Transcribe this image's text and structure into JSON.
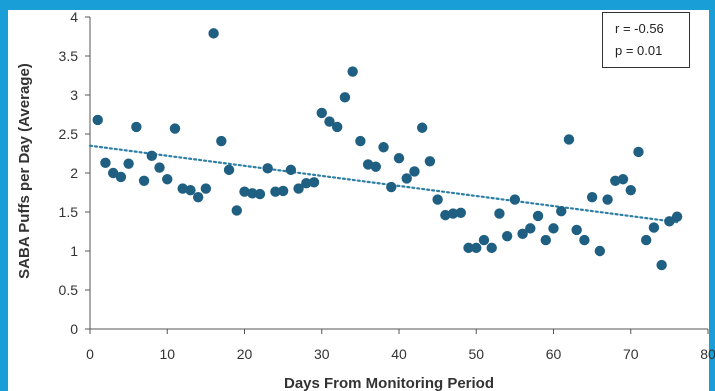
{
  "chart_data": {
    "type": "scatter",
    "title": "",
    "xlabel": "Days From Monitoring Period",
    "ylabel": "SABA Puffs per Day (Average)",
    "xlim": [
      0,
      80
    ],
    "ylim": [
      0,
      4
    ],
    "x_ticks": [
      0,
      10,
      20,
      30,
      40,
      50,
      60,
      70,
      80
    ],
    "y_ticks": [
      0,
      0.5,
      1,
      1.5,
      2,
      2.5,
      3,
      3.5,
      4
    ],
    "x_tick_labels": [
      "0",
      "10",
      "20",
      "30",
      "40",
      "50",
      "60",
      "70",
      "80"
    ],
    "y_tick_labels": [
      "0",
      "0.5",
      "1",
      "1.5",
      "2",
      "2.5",
      "3",
      "3.5",
      "4"
    ],
    "grid": false,
    "point_color": "#1f5f82",
    "trendline": {
      "style": "dotted",
      "color": "#2e7fa6",
      "x": [
        0,
        76
      ],
      "y": [
        2.35,
        1.37
      ]
    },
    "annotations": {
      "r": "r = -0.56",
      "p": "p = 0.01"
    },
    "points": [
      [
        1,
        2.68
      ],
      [
        2,
        2.13
      ],
      [
        3,
        2.0
      ],
      [
        4,
        1.95
      ],
      [
        5,
        2.12
      ],
      [
        6,
        2.59
      ],
      [
        7,
        1.9
      ],
      [
        8,
        2.22
      ],
      [
        9,
        2.07
      ],
      [
        10,
        1.92
      ],
      [
        11,
        2.57
      ],
      [
        12,
        1.8
      ],
      [
        13,
        1.78
      ],
      [
        14,
        1.69
      ],
      [
        15,
        1.8
      ],
      [
        16,
        3.79
      ],
      [
        17,
        2.41
      ],
      [
        18,
        2.04
      ],
      [
        19,
        1.52
      ],
      [
        20,
        1.76
      ],
      [
        21,
        1.74
      ],
      [
        22,
        1.73
      ],
      [
        23,
        2.06
      ],
      [
        24,
        1.76
      ],
      [
        25,
        1.77
      ],
      [
        26,
        2.04
      ],
      [
        27,
        1.8
      ],
      [
        28,
        1.87
      ],
      [
        29,
        1.88
      ],
      [
        30,
        2.77
      ],
      [
        31,
        2.66
      ],
      [
        32,
        2.59
      ],
      [
        33,
        2.97
      ],
      [
        34,
        3.3
      ],
      [
        35,
        2.41
      ],
      [
        36,
        2.11
      ],
      [
        37,
        2.08
      ],
      [
        38,
        2.33
      ],
      [
        39,
        1.82
      ],
      [
        40,
        2.19
      ],
      [
        41,
        1.93
      ],
      [
        42,
        2.02
      ],
      [
        43,
        2.58
      ],
      [
        44,
        2.15
      ],
      [
        45,
        1.66
      ],
      [
        46,
        1.46
      ],
      [
        47,
        1.48
      ],
      [
        48,
        1.49
      ],
      [
        49,
        1.04
      ],
      [
        50,
        1.04
      ],
      [
        51,
        1.14
      ],
      [
        52,
        1.04
      ],
      [
        53,
        1.48
      ],
      [
        54,
        1.19
      ],
      [
        55,
        1.66
      ],
      [
        56,
        1.22
      ],
      [
        57,
        1.29
      ],
      [
        58,
        1.45
      ],
      [
        59,
        1.14
      ],
      [
        60,
        1.29
      ],
      [
        61,
        1.51
      ],
      [
        62,
        2.43
      ],
      [
        63,
        1.27
      ],
      [
        64,
        1.14
      ],
      [
        65,
        1.69
      ],
      [
        66,
        1.0
      ],
      [
        67,
        1.66
      ],
      [
        68,
        1.9
      ],
      [
        69,
        1.92
      ],
      [
        70,
        1.78
      ],
      [
        71,
        2.27
      ],
      [
        72,
        1.14
      ],
      [
        73,
        1.3
      ],
      [
        74,
        0.82
      ],
      [
        75,
        1.38
      ],
      [
        76,
        1.44
      ]
    ]
  }
}
